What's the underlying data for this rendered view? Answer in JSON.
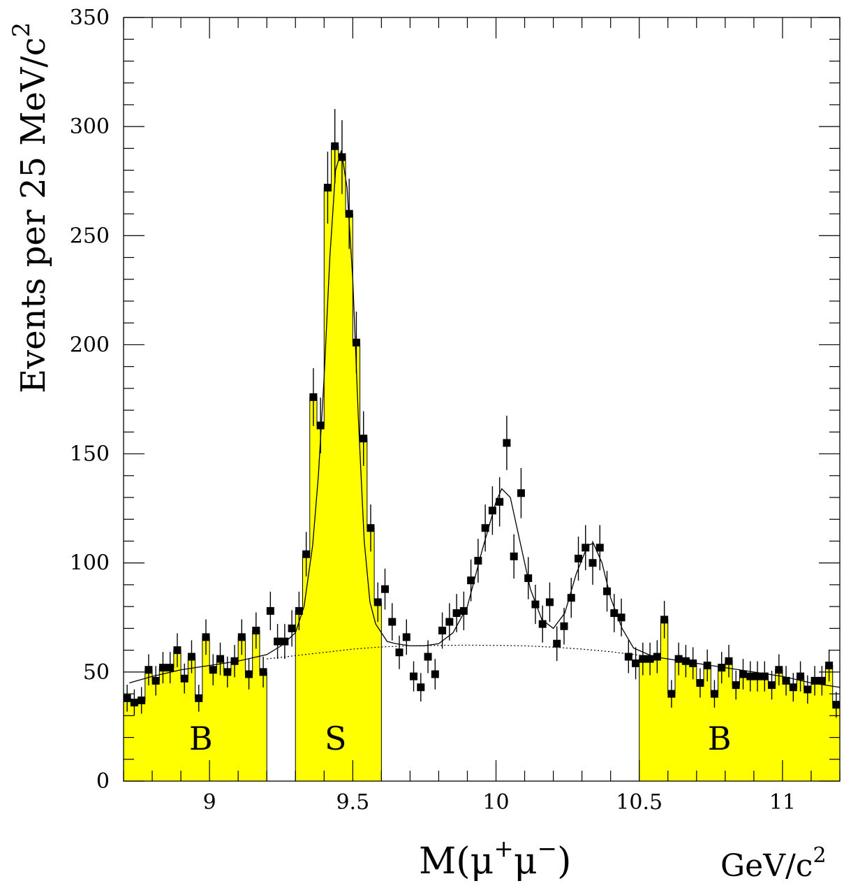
{
  "chart_data": {
    "type": "scatter",
    "title": "",
    "ylabel": {
      "base": "Events per 25 MeV/c",
      "exp": "2"
    },
    "xlabel": {
      "m": "M(",
      "mu1": "μ",
      "sup1": "+",
      "mu2": "μ",
      "sup2": "−",
      "close": ")"
    },
    "x_unit": {
      "base": "GeV/c",
      "exp": "2"
    },
    "xlim": [
      8.7,
      11.2
    ],
    "ylim": [
      0,
      350
    ],
    "bin_width": 0.025,
    "x_ticks": [
      9,
      9.5,
      10,
      10.5,
      11
    ],
    "x_tick_labels": [
      "9",
      "9.5",
      "10",
      "10.5",
      "11"
    ],
    "y_ticks": [
      0,
      50,
      100,
      150,
      200,
      250,
      300,
      350
    ],
    "y_tick_labels": [
      "0",
      "50",
      "100",
      "150",
      "200",
      "250",
      "300",
      "350"
    ],
    "fill_color": "#ffff00",
    "regions": [
      {
        "label": "B",
        "xmin": 8.7,
        "xmax": 9.2
      },
      {
        "label": "S",
        "xmin": 9.3,
        "xmax": 9.6
      },
      {
        "label": "B",
        "xmin": 10.5,
        "xmax": 11.2
      }
    ],
    "series": [
      {
        "kind": "data_points_with_errors",
        "x": [
          8.7125,
          8.7375,
          8.7625,
          8.7875,
          8.8125,
          8.8375,
          8.8625,
          8.8875,
          8.9125,
          8.9375,
          8.9625,
          8.9875,
          9.0125,
          9.0375,
          9.0625,
          9.0875,
          9.1125,
          9.1375,
          9.1625,
          9.1875,
          9.2125,
          9.2375,
          9.2625,
          9.2875,
          9.3125,
          9.3375,
          9.3625,
          9.3875,
          9.4125,
          9.4375,
          9.4625,
          9.4875,
          9.5125,
          9.5375,
          9.5625,
          9.5875,
          9.6125,
          9.6375,
          9.6625,
          9.6875,
          9.7125,
          9.7375,
          9.7625,
          9.7875,
          9.8125,
          9.8375,
          9.8625,
          9.8875,
          9.9125,
          9.9375,
          9.9625,
          9.9875,
          10.0125,
          10.0375,
          10.0625,
          10.0875,
          10.1125,
          10.1375,
          10.1625,
          10.1875,
          10.2125,
          10.2375,
          10.2625,
          10.2875,
          10.3125,
          10.3375,
          10.3625,
          10.3875,
          10.4125,
          10.4375,
          10.4625,
          10.4875,
          10.5125,
          10.5375,
          10.5625,
          10.5875,
          10.6125,
          10.6375,
          10.6625,
          10.6875,
          10.7125,
          10.7375,
          10.7625,
          10.7875,
          10.8125,
          10.8375,
          10.8625,
          10.8875,
          10.9125,
          10.9375,
          10.9625,
          10.9875,
          11.0125,
          11.0375,
          11.0625,
          11.0875,
          11.1125,
          11.1375,
          11.1625,
          11.1875
        ],
        "y": [
          38,
          36,
          37,
          51,
          46,
          52,
          52,
          60,
          47,
          57,
          38,
          66,
          51,
          56,
          50,
          55,
          66,
          49,
          69,
          50,
          78,
          64,
          64,
          70,
          78,
          104,
          176,
          163,
          272,
          291,
          286,
          260,
          201,
          157,
          116,
          82,
          88,
          73,
          59,
          66,
          48,
          43,
          57,
          49,
          69,
          73,
          77,
          78,
          92,
          101,
          116,
          124,
          128,
          155,
          103,
          132,
          93,
          81,
          72,
          82,
          63,
          71,
          84,
          102,
          107,
          100,
          107,
          87,
          77,
          75,
          57,
          54,
          56,
          56,
          57,
          74,
          40,
          56,
          55,
          54,
          45,
          53,
          40,
          52,
          55,
          44,
          49,
          48,
          48,
          48,
          44,
          51,
          46,
          43,
          48,
          42,
          46,
          46,
          53,
          35
        ]
      },
      {
        "kind": "fit_total",
        "x": [
          8.72,
          8.8,
          8.9,
          9.0,
          9.1,
          9.2,
          9.25,
          9.3,
          9.33,
          9.36,
          9.38,
          9.4,
          9.42,
          9.44,
          9.46,
          9.48,
          9.5,
          9.52,
          9.54,
          9.56,
          9.58,
          9.6,
          9.62,
          9.65,
          9.7,
          9.75,
          9.8,
          9.85,
          9.9,
          9.95,
          10.0,
          10.02,
          10.05,
          10.08,
          10.12,
          10.16,
          10.2,
          10.24,
          10.28,
          10.32,
          10.34,
          10.37,
          10.4,
          10.44,
          10.48,
          10.55,
          10.6,
          10.7,
          10.8,
          10.9,
          11.0,
          11.1,
          11.2
        ],
        "y": [
          45,
          48,
          51,
          53,
          55,
          58,
          62,
          68,
          80,
          108,
          140,
          185,
          240,
          280,
          289,
          272,
          230,
          165,
          110,
          82,
          72,
          68,
          64,
          63,
          62,
          62,
          63,
          68,
          80,
          105,
          128,
          134,
          130,
          112,
          88,
          74,
          70,
          77,
          95,
          108,
          109,
          100,
          84,
          70,
          61,
          57,
          56,
          54,
          52,
          50,
          48,
          45,
          43
        ]
      },
      {
        "kind": "fit_background",
        "x": [
          9.2,
          9.3,
          9.4,
          9.5,
          9.6,
          9.7,
          9.8,
          9.9,
          10.0,
          10.1,
          10.2,
          10.3,
          10.4,
          10.5,
          10.55
        ],
        "y": [
          56,
          57.5,
          59,
          60.5,
          61.5,
          62,
          62.2,
          62.3,
          62.2,
          62,
          61.4,
          60.5,
          59.3,
          57.7,
          57
        ]
      }
    ]
  }
}
